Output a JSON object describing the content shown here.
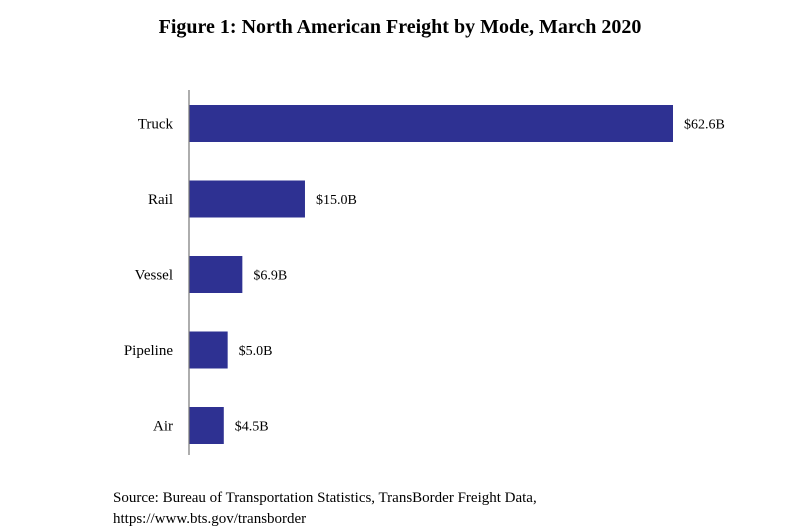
{
  "chart_data": {
    "type": "bar",
    "orientation": "horizontal",
    "title": "Figure 1: North American Freight by Mode, March 2020",
    "categories": [
      "Truck",
      "Rail",
      "Vessel",
      "Pipeline",
      "Air"
    ],
    "values": [
      62.6,
      15.0,
      6.9,
      5.0,
      4.5
    ],
    "data_labels": [
      "$62.6B",
      "$15.0B",
      "$6.9B",
      "$5.0B",
      "$4.5B"
    ],
    "unit": "billion USD",
    "xlabel": "",
    "ylabel": "",
    "xlim": [
      0,
      62.6
    ],
    "grid": false,
    "bar_color": "#2e3192"
  },
  "source": {
    "line1": "Source: Bureau of Transportation Statistics, TransBorder Freight Data,",
    "line2": "https://www.bts.gov/transborder"
  }
}
